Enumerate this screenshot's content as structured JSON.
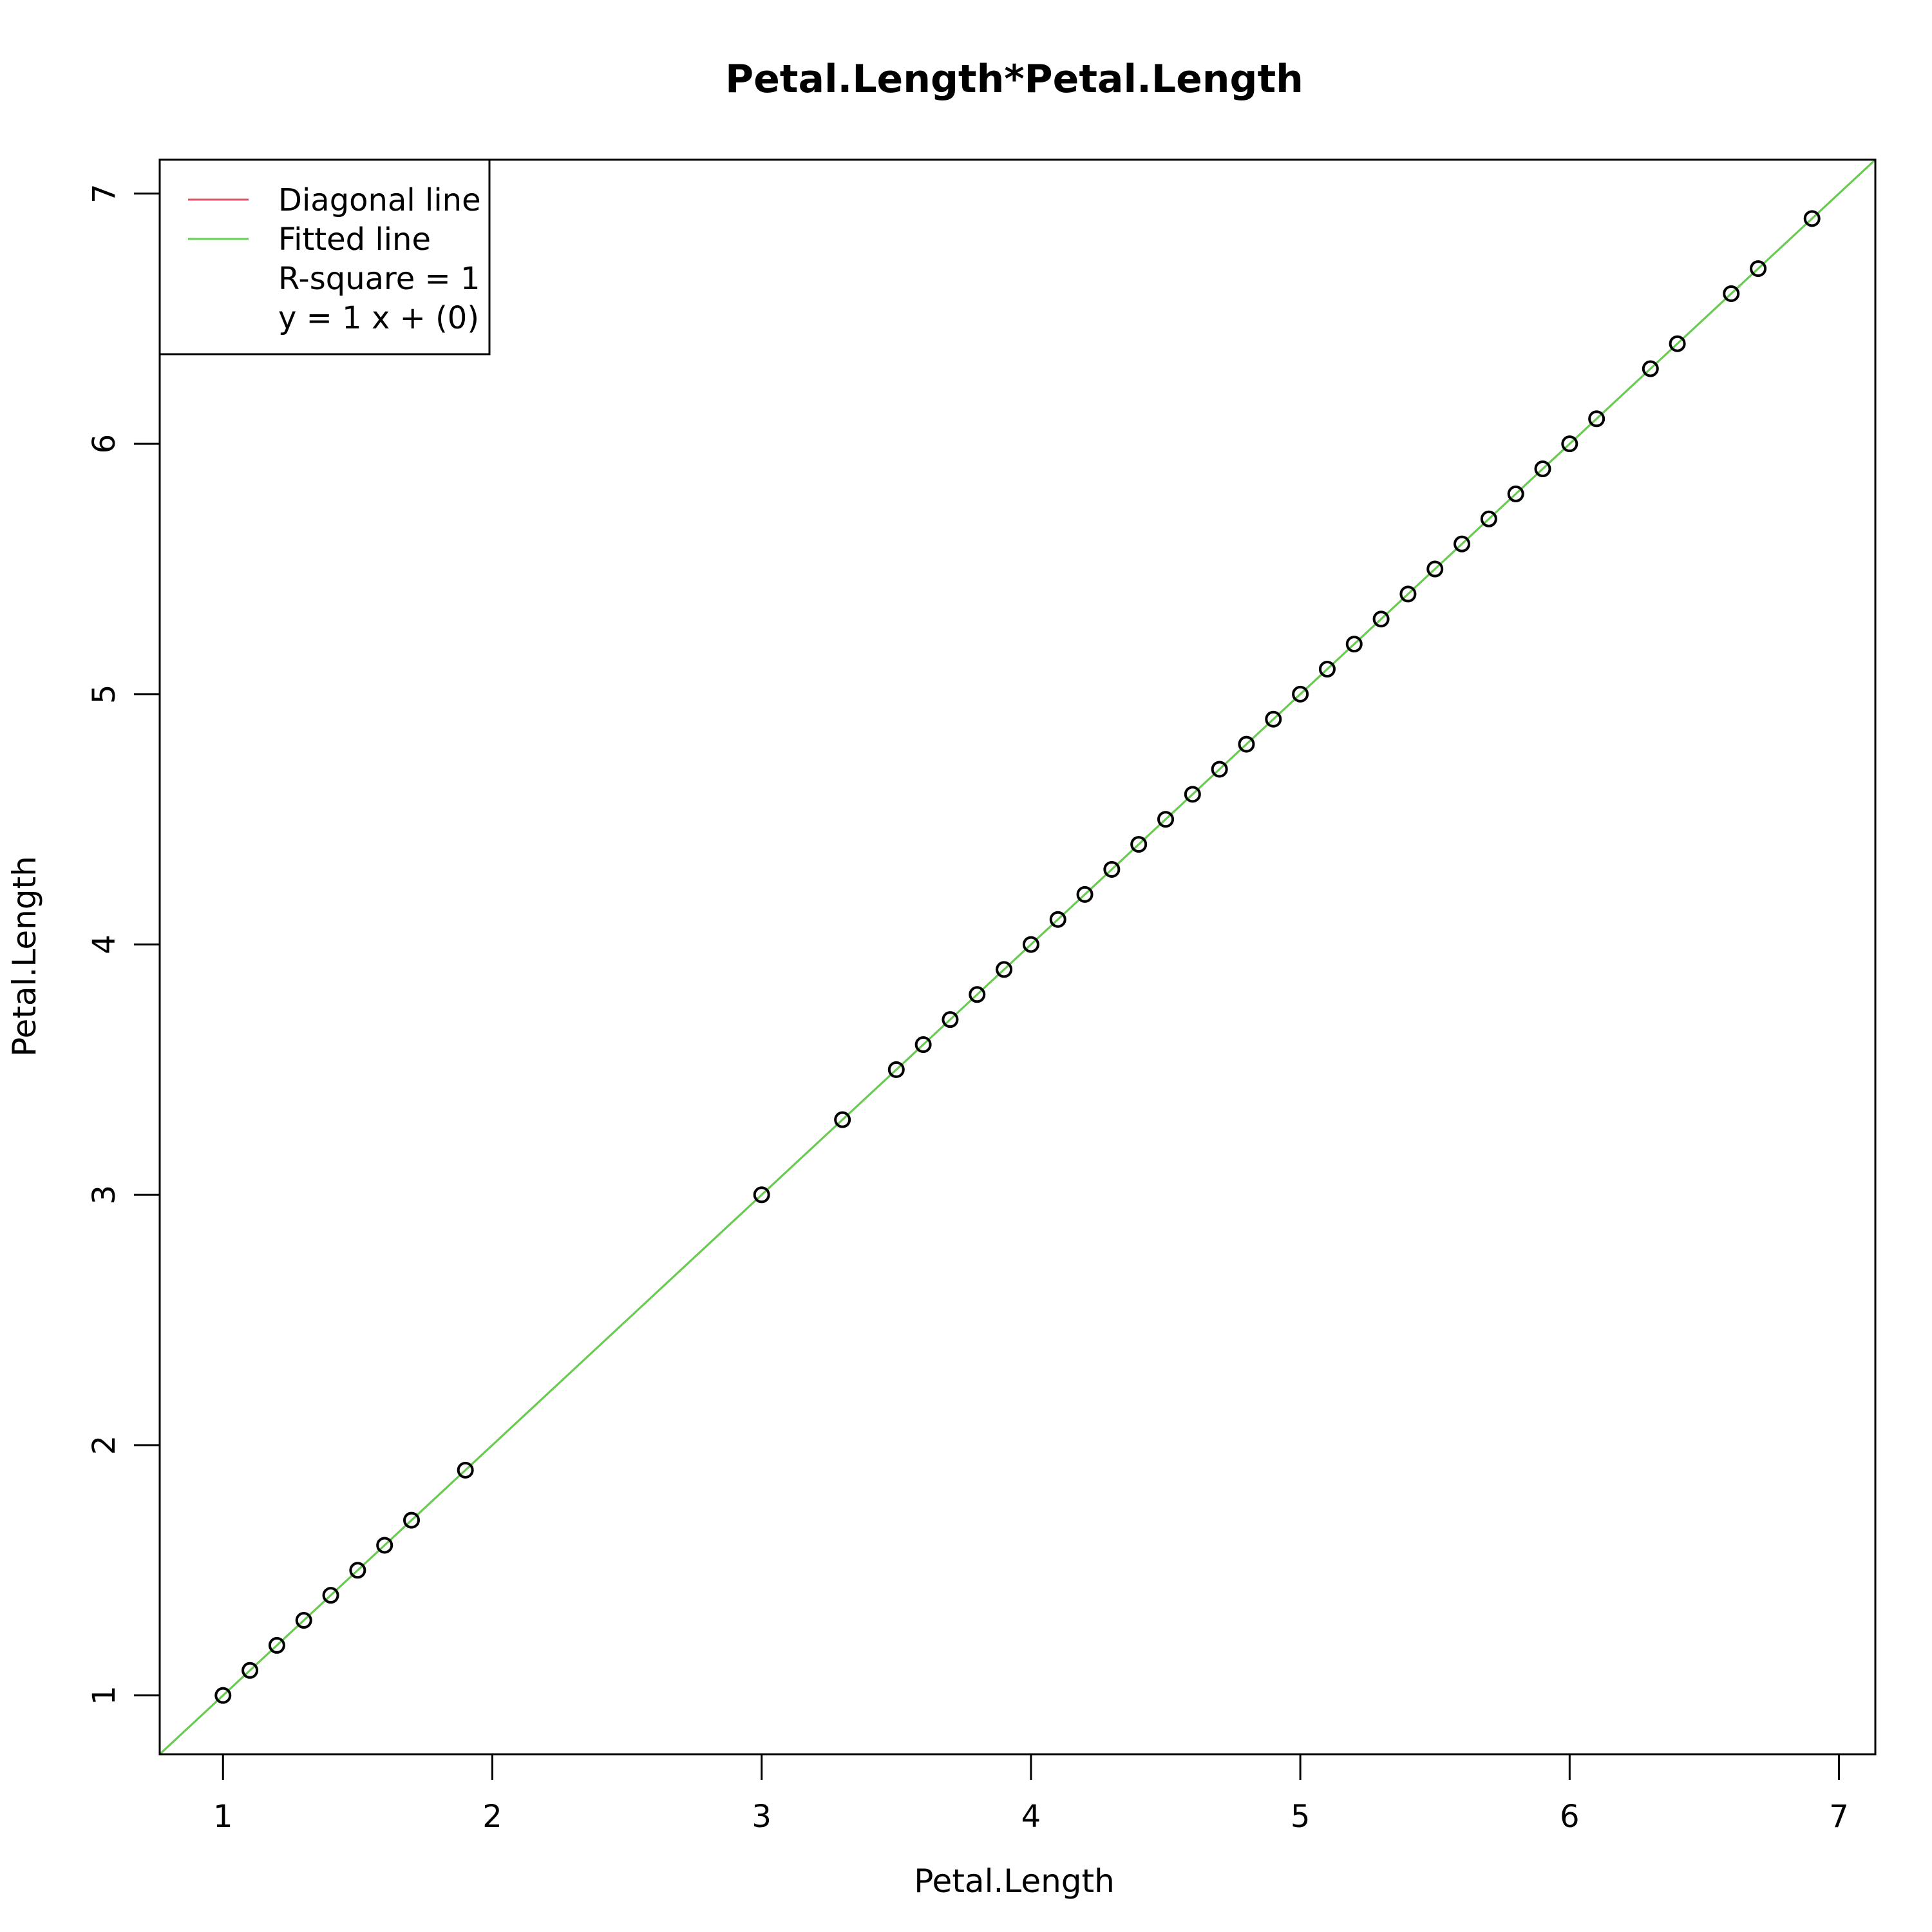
{
  "chart_data": {
    "type": "scatter",
    "title": "Petal.Length*Petal.Length",
    "xlabel": "Petal.Length",
    "ylabel": "Petal.Length",
    "xlim": [
      0.765,
      7.135
    ],
    "ylim": [
      0.765,
      7.135
    ],
    "x_ticks": [
      1,
      2,
      3,
      4,
      5,
      6,
      7
    ],
    "y_ticks": [
      1,
      2,
      3,
      4,
      5,
      6,
      7
    ],
    "grid": false,
    "legend_position": "top-left",
    "legend": [
      {
        "label": "Diagonal line",
        "color": "#DF536B",
        "kind": "line"
      },
      {
        "label": "Fitted line",
        "color": "#61D04F",
        "kind": "line"
      },
      {
        "label": "R-square = 1",
        "kind": "text"
      },
      {
        "label": "y = 1 x + (0)",
        "kind": "text"
      }
    ],
    "lines": [
      {
        "name": "Diagonal line",
        "slope": 1,
        "intercept": 0,
        "color": "#DF536B"
      },
      {
        "name": "Fitted line",
        "slope": 1,
        "intercept": 0,
        "color": "#61D04F"
      }
    ],
    "points": {
      "x": [
        1.0,
        1.1,
        1.2,
        1.3,
        1.4,
        1.5,
        1.6,
        1.7,
        1.9,
        3.0,
        3.3,
        3.5,
        3.6,
        3.7,
        3.8,
        3.9,
        4.0,
        4.1,
        4.2,
        4.3,
        4.4,
        4.5,
        4.6,
        4.7,
        4.8,
        4.9,
        5.0,
        5.1,
        5.2,
        5.3,
        5.4,
        5.5,
        5.6,
        5.7,
        5.8,
        5.9,
        6.0,
        6.1,
        6.3,
        6.4,
        6.6,
        6.7,
        6.9
      ],
      "y": [
        1.0,
        1.1,
        1.2,
        1.3,
        1.4,
        1.5,
        1.6,
        1.7,
        1.9,
        3.0,
        3.3,
        3.5,
        3.6,
        3.7,
        3.8,
        3.9,
        4.0,
        4.1,
        4.2,
        4.3,
        4.4,
        4.5,
        4.6,
        4.7,
        4.8,
        4.9,
        5.0,
        5.1,
        5.2,
        5.3,
        5.4,
        5.5,
        5.6,
        5.7,
        5.8,
        5.9,
        6.0,
        6.1,
        6.3,
        6.4,
        6.6,
        6.7,
        6.9
      ],
      "marker": "open-circle",
      "color": "#000000"
    }
  }
}
